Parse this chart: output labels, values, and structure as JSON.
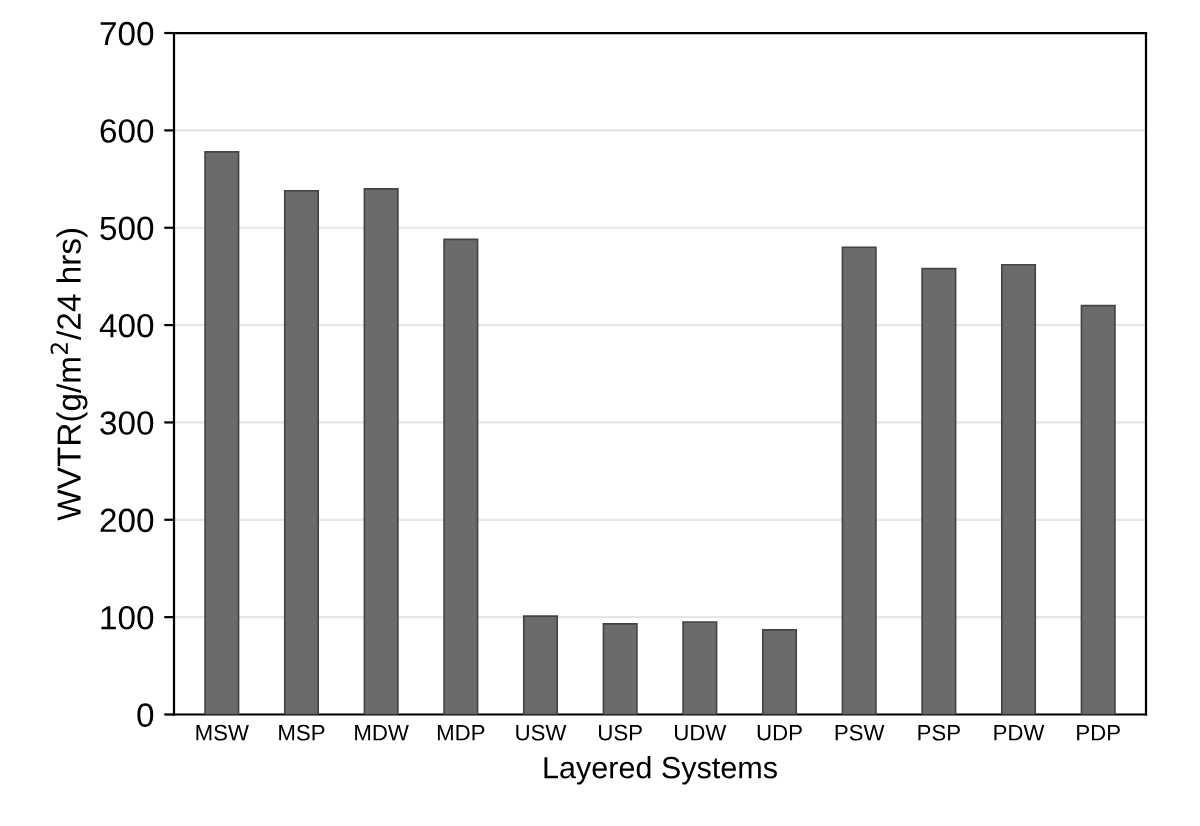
{
  "chart_data": {
    "type": "bar",
    "xlabel": "Layered Systems",
    "ylabel": "WVTR(g/m$^{2}$/24 hrs)",
    "categories": [
      "MSW",
      "MSP",
      "MDW",
      "MDP",
      "USW",
      "USP",
      "UDW",
      "UDP",
      "PSW",
      "PSP",
      "PDW",
      "PDP"
    ],
    "values": [
      578,
      538,
      540,
      488,
      101,
      93,
      95,
      87,
      480,
      458,
      462,
      420
    ],
    "color": "#6b6b6b",
    "ylim": [
      0,
      700
    ],
    "yticks": [
      0,
      100,
      200,
      300,
      400,
      500,
      600,
      700
    ],
    "grid": "y"
  }
}
